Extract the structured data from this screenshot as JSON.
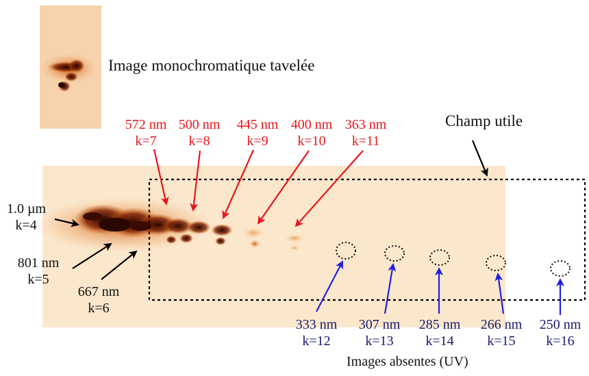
{
  "caption_mono": "Image monochromatique tavelée",
  "caption_champ": "Champ utile",
  "caption_absent": "Images absentes (UV)",
  "labels_left": [
    {
      "wl": "1.0 µm",
      "k": "k=4"
    },
    {
      "wl": "801 nm",
      "k": "k=5"
    },
    {
      "wl": "667 nm",
      "k": "k=6"
    }
  ],
  "labels_visible": [
    {
      "wl": "572 nm",
      "k": "k=7"
    },
    {
      "wl": "500 nm",
      "k": "k=8"
    },
    {
      "wl": "445 nm",
      "k": "k=9"
    },
    {
      "wl": "400 nm",
      "k": "k=10"
    },
    {
      "wl": "363 nm",
      "k": "k=11"
    }
  ],
  "labels_uv": [
    {
      "wl": "333 nm",
      "k": "k=12"
    },
    {
      "wl": "307 nm",
      "k": "k=13"
    },
    {
      "wl": "285 nm",
      "k": "k=14"
    },
    {
      "wl": "266 nm",
      "k": "k=15"
    },
    {
      "wl": "250 nm",
      "k": "k=16"
    }
  ],
  "colors": {
    "visible_labels": "#e8141b",
    "uv_labels": "#1a1a6e",
    "uv_arrows": "#1f1fe0",
    "image_background": "#fbe7cc",
    "speckle": "#3a0a00"
  }
}
